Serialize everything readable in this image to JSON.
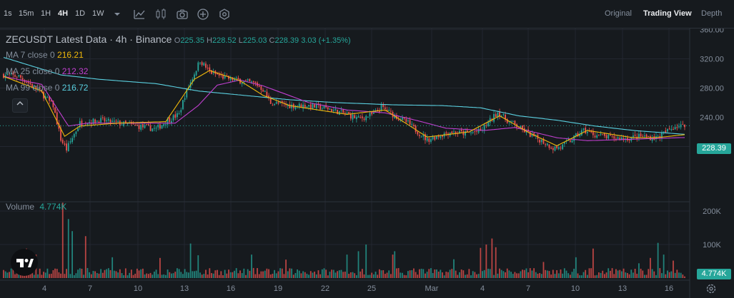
{
  "toolbar": {
    "timeframes": [
      "1s",
      "15m",
      "1H",
      "4H",
      "1D",
      "1W"
    ],
    "active_timeframe": "4H",
    "views": [
      "Original",
      "Trading View",
      "Depth"
    ],
    "active_view": "Trading View"
  },
  "legend": {
    "title": "ZECUSDT Latest Data · 4h · Binance",
    "ohlc": {
      "o_label": "O",
      "o": "225.35",
      "h_label": "H",
      "h": "228.52",
      "l_label": "L",
      "l": "225.03",
      "c_label": "C",
      "c": "228.39",
      "change": "3.03 (+1.35%)"
    },
    "ma7": {
      "label": "MA 7 close 0",
      "value": "216.21",
      "color": "#f0b90b"
    },
    "ma25": {
      "label": "MA 25 close 0",
      "value": "212.32",
      "color": "#c13fd0"
    },
    "ma99": {
      "label": "MA 99 close 0",
      "value": "216.72",
      "color": "#5ad0e0"
    },
    "volume": {
      "label": "Volume",
      "value": "4.774K"
    }
  },
  "price_axis": {
    "ticks": [
      "360.00",
      "320.00",
      "280.00",
      "240.00",
      "200.00"
    ],
    "current": "228.39"
  },
  "volume_axis": {
    "ticks": [
      "200K",
      "100K"
    ],
    "current": "4.774K"
  },
  "time_axis": {
    "ticks": [
      "4",
      "7",
      "10",
      "13",
      "16",
      "19",
      "22",
      "25",
      "Mar",
      "4",
      "7",
      "10",
      "13",
      "16"
    ]
  },
  "colors": {
    "up": "#26a69a",
    "down": "#ef5350",
    "ma7": "#f0b90b",
    "ma25": "#c13fd0",
    "ma99": "#5ad0e0",
    "grid": "#232730"
  },
  "chart_data": {
    "type": "candlestick",
    "title": "ZECUSDT Latest Data · 4h · Binance",
    "ylim": [
      175,
      380
    ],
    "volume_ylim": [
      0,
      255000
    ],
    "price_keypoints": [
      [
        0,
        298
      ],
      [
        8,
        296
      ],
      [
        18,
        278
      ],
      [
        26,
        256
      ],
      [
        30,
        210
      ],
      [
        33,
        196
      ],
      [
        36,
        212
      ],
      [
        40,
        232
      ],
      [
        50,
        236
      ],
      [
        60,
        232
      ],
      [
        70,
        228
      ],
      [
        80,
        224
      ],
      [
        86,
        236
      ],
      [
        92,
        244
      ],
      [
        95,
        270
      ],
      [
        100,
        300
      ],
      [
        103,
        318
      ],
      [
        108,
        302
      ],
      [
        116,
        294
      ],
      [
        124,
        290
      ],
      [
        132,
        286
      ],
      [
        136,
        278
      ],
      [
        140,
        260
      ],
      [
        150,
        256
      ],
      [
        160,
        256
      ],
      [
        170,
        252
      ],
      [
        180,
        244
      ],
      [
        186,
        238
      ],
      [
        194,
        244
      ],
      [
        198,
        254
      ],
      [
        204,
        244
      ],
      [
        212,
        232
      ],
      [
        218,
        218
      ],
      [
        222,
        209
      ],
      [
        226,
        213
      ],
      [
        234,
        220
      ],
      [
        242,
        218
      ],
      [
        250,
        221
      ],
      [
        256,
        238
      ],
      [
        259,
        247
      ],
      [
        264,
        236
      ],
      [
        272,
        223
      ],
      [
        276,
        216
      ],
      [
        282,
        208
      ],
      [
        288,
        198
      ],
      [
        292,
        199
      ],
      [
        298,
        210
      ],
      [
        304,
        222
      ],
      [
        310,
        216
      ],
      [
        318,
        212
      ],
      [
        326,
        211
      ],
      [
        334,
        214
      ],
      [
        342,
        212
      ],
      [
        346,
        218
      ],
      [
        352,
        228
      ]
    ],
    "volume_spikes": [
      [
        12,
        88000
      ],
      [
        17,
        70000
      ],
      [
        31,
        225000
      ],
      [
        34,
        176000
      ],
      [
        36,
        140000
      ],
      [
        43,
        125000
      ],
      [
        57,
        62000
      ],
      [
        82,
        60000
      ],
      [
        98,
        103000
      ],
      [
        102,
        68000
      ],
      [
        130,
        70000
      ],
      [
        148,
        55000
      ],
      [
        180,
        70000
      ],
      [
        186,
        80000
      ],
      [
        190,
        100000
      ],
      [
        204,
        70000
      ],
      [
        205,
        80000
      ],
      [
        236,
        56000
      ],
      [
        250,
        90000
      ],
      [
        253,
        100000
      ],
      [
        256,
        118000
      ],
      [
        258,
        92000
      ],
      [
        283,
        48000
      ],
      [
        300,
        62000
      ],
      [
        309,
        88000
      ],
      [
        333,
        44000
      ],
      [
        339,
        60000
      ],
      [
        343,
        105000
      ],
      [
        346,
        70000
      ],
      [
        351,
        52000
      ],
      [
        357,
        4774
      ]
    ],
    "ma7": [
      [
        0,
        296
      ],
      [
        20,
        276
      ],
      [
        32,
        214
      ],
      [
        40,
        228
      ],
      [
        60,
        232
      ],
      [
        85,
        234
      ],
      [
        100,
        292
      ],
      [
        108,
        304
      ],
      [
        124,
        290
      ],
      [
        136,
        270
      ],
      [
        150,
        256
      ],
      [
        180,
        244
      ],
      [
        200,
        250
      ],
      [
        222,
        213
      ],
      [
        244,
        220
      ],
      [
        260,
        242
      ],
      [
        276,
        218
      ],
      [
        290,
        201
      ],
      [
        306,
        222
      ],
      [
        330,
        212
      ],
      [
        342,
        212
      ],
      [
        357,
        216.21
      ]
    ],
    "ma25": [
      [
        0,
        296
      ],
      [
        20,
        285
      ],
      [
        34,
        228
      ],
      [
        44,
        232
      ],
      [
        64,
        232
      ],
      [
        90,
        232
      ],
      [
        102,
        256
      ],
      [
        112,
        284
      ],
      [
        124,
        291
      ],
      [
        136,
        283
      ],
      [
        160,
        260
      ],
      [
        180,
        250
      ],
      [
        200,
        246
      ],
      [
        216,
        236
      ],
      [
        232,
        225
      ],
      [
        252,
        222
      ],
      [
        268,
        226
      ],
      [
        290,
        212
      ],
      [
        306,
        208
      ],
      [
        330,
        210
      ],
      [
        357,
        212.32
      ]
    ],
    "ma99": [
      [
        0,
        322
      ],
      [
        30,
        298
      ],
      [
        50,
        292
      ],
      [
        80,
        286
      ],
      [
        102,
        276
      ],
      [
        126,
        270
      ],
      [
        150,
        264
      ],
      [
        175,
        260
      ],
      [
        205,
        257
      ],
      [
        230,
        256
      ],
      [
        250,
        253
      ],
      [
        270,
        242
      ],
      [
        290,
        236
      ],
      [
        310,
        228
      ],
      [
        330,
        222
      ],
      [
        357,
        216.72
      ]
    ],
    "candles_count": 358
  }
}
